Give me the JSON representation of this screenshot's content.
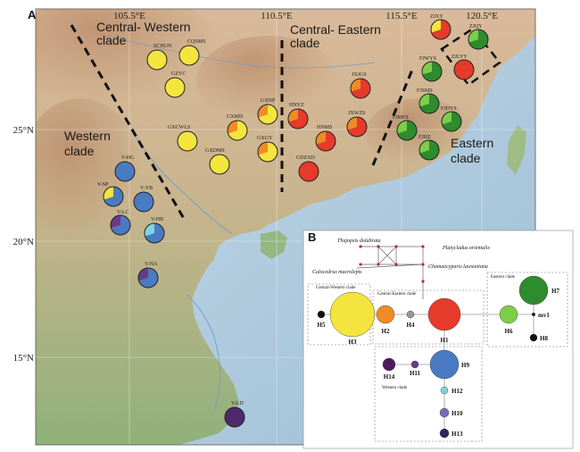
{
  "panel_a": {
    "label": "A",
    "longitude_labels": [
      "105.5°E",
      "110.5°E",
      "115.5°E",
      "120.5°E"
    ],
    "latitude_labels": [
      "25°N",
      "20°N",
      "15°N"
    ],
    "clades": {
      "central_western": "Central- Western\nclade",
      "central_eastern": "Central- Eastern\nclade",
      "western": "Western\nclade",
      "eastern": "Eastern\nclade"
    },
    "populations": [
      {
        "name": "SCHUN",
        "colors": [
          "#f3e53e"
        ]
      },
      {
        "name": "CQSMS",
        "colors": [
          "#f3e53e"
        ]
      },
      {
        "name": "GZYC",
        "colors": [
          "#f3e53e"
        ]
      },
      {
        "name": "GXCWLS",
        "colors": [
          "#f3e53e"
        ]
      },
      {
        "name": "GXDMS",
        "colors": [
          "#f3e53e"
        ]
      },
      {
        "name": "GXNP",
        "colors": [
          "#f3e53e",
          "#f08a25"
        ]
      },
      {
        "name": "GXMD",
        "colors": [
          "#f3e53e",
          "#f08a25"
        ]
      },
      {
        "name": "GXGY",
        "colors": [
          "#f3e53e",
          "#f08a25"
        ]
      },
      {
        "name": "HNYZ",
        "colors": [
          "#e63a2a",
          "#f08a25"
        ]
      },
      {
        "name": "HNMS",
        "colors": [
          "#e63a2a",
          "#f08a25"
        ]
      },
      {
        "name": "JXJGS",
        "colors": [
          "#e63a2a",
          "#f08a25"
        ]
      },
      {
        "name": "JXWZS",
        "colors": [
          "#e63a2a",
          "#f08a25"
        ]
      },
      {
        "name": "GDZXD",
        "colors": [
          "#e63a2a"
        ]
      },
      {
        "name": "ZJXY",
        "colors": [
          "#e63a2a",
          "#f3e53e"
        ]
      },
      {
        "name": "ZJQY",
        "colors": [
          "#2e8b2e",
          "#7ccd4a"
        ]
      },
      {
        "name": "ZJLYY",
        "colors": [
          "#e63a2a"
        ]
      },
      {
        "name": "FJWYS",
        "colors": [
          "#2e8b2e",
          "#7ccd4a"
        ]
      },
      {
        "name": "FJSMS",
        "colors": [
          "#2e8b2e",
          "#7ccd4a"
        ]
      },
      {
        "name": "FJDYS",
        "colors": [
          "#2e8b2e",
          "#7ccd4a"
        ]
      },
      {
        "name": "FJMFS",
        "colors": [
          "#2e8b2e",
          "#7ccd4a"
        ]
      },
      {
        "name": "FJHZ",
        "colors": [
          "#2e8b2e",
          "#7ccd4a"
        ]
      },
      {
        "name": "V-HG",
        "colors": [
          "#4a7bc0"
        ]
      },
      {
        "name": "V-SP",
        "colors": [
          "#4a7bc0",
          "#f3e53e"
        ]
      },
      {
        "name": "V-YB",
        "colors": [
          "#4a7bc0"
        ]
      },
      {
        "name": "V-LC",
        "colors": [
          "#4a7bc0",
          "#6a3a8a"
        ]
      },
      {
        "name": "V-HB",
        "colors": [
          "#4a7bc0",
          "#7fd4e0"
        ]
      },
      {
        "name": "V-NA",
        "colors": [
          "#4a7bc0",
          "#6a3a8a"
        ]
      },
      {
        "name": "V-LD",
        "colors": [
          "#4f2a6b"
        ]
      }
    ]
  },
  "panel_b": {
    "label": "B",
    "outgroups": {
      "thujopsis": "Thujopsis dolabrata",
      "platycladus": "Platycladus orientalis",
      "calocedrus": "Calocedrus macrolepis",
      "chamaecyparis": "Chamaecyparis lawsoniana"
    },
    "box_labels": {
      "central_western": "Central-Western clade",
      "central_eastern": "Central-Eastern clade",
      "eastern": "Eastern clade",
      "western": "Western clade"
    },
    "haplotypes": [
      {
        "id": "H1",
        "color": "#e63a2a"
      },
      {
        "id": "H2",
        "color": "#f08a25"
      },
      {
        "id": "H3",
        "color": "#f3e53e"
      },
      {
        "id": "H4",
        "color": "#999999"
      },
      {
        "id": "H5",
        "color": "#111111"
      },
      {
        "id": "H6",
        "color": "#7ccd4a"
      },
      {
        "id": "H7",
        "color": "#2e8b2e"
      },
      {
        "id": "H8",
        "color": "#111111"
      },
      {
        "id": "H9",
        "color": "#4a7bc0"
      },
      {
        "id": "H10",
        "color": "#7a6ab8"
      },
      {
        "id": "H11",
        "color": "#6a3a8a"
      },
      {
        "id": "H12",
        "color": "#7fd4e0"
      },
      {
        "id": "H13",
        "color": "#2a2a5a"
      },
      {
        "id": "H14",
        "color": "#4f1a5e"
      },
      {
        "id": "mv1",
        "color": "#111111"
      }
    ]
  }
}
